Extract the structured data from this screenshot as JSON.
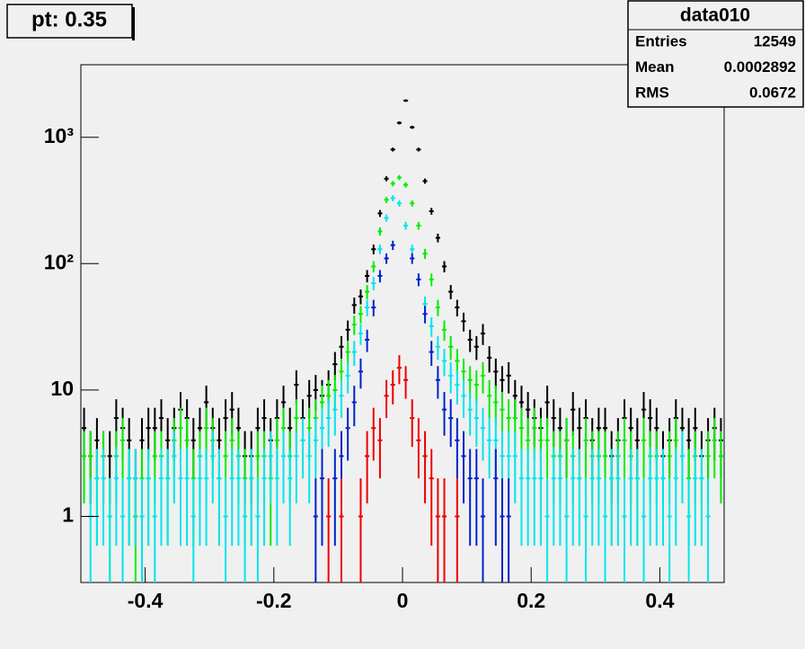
{
  "chart_data": {
    "type": "histogram",
    "title": "pt: 0.35",
    "stats": {
      "title": "data010",
      "rows": [
        {
          "label": "Entries",
          "value": 12549
        },
        {
          "label": "Mean",
          "value": 0.0002892
        },
        {
          "label": "RMS",
          "value": 0.0672
        }
      ]
    },
    "log_y": true,
    "xlim": [
      -0.5,
      0.5
    ],
    "xticks": [
      -0.4,
      -0.2,
      0,
      0.2,
      0.4
    ],
    "ylim": [
      0.3,
      3750
    ],
    "yticks": [
      1,
      10,
      {
        "value": 100,
        "label": "10²"
      },
      {
        "value": 1000,
        "label": "10³"
      }
    ],
    "bins": [
      -0.5,
      -0.49,
      -0.48,
      -0.47,
      -0.46,
      -0.45,
      -0.44,
      -0.43,
      -0.42,
      -0.41,
      -0.4,
      -0.39,
      -0.38,
      -0.37,
      -0.36,
      -0.35,
      -0.34,
      -0.33,
      -0.32,
      -0.31,
      -0.3,
      -0.29,
      -0.28,
      -0.27,
      -0.26,
      -0.25,
      -0.24,
      -0.23,
      -0.22,
      -0.21,
      -0.2,
      -0.19,
      -0.18,
      -0.17,
      -0.16,
      -0.15,
      -0.14,
      -0.13,
      -0.12,
      -0.11,
      -0.1,
      -0.09,
      -0.08,
      -0.07,
      -0.06,
      -0.05,
      -0.04,
      -0.03,
      -0.02,
      -0.01,
      0,
      0.01,
      0.02,
      0.03,
      0.04,
      0.05,
      0.06,
      0.07,
      0.08,
      0.09,
      0.1,
      0.11,
      0.12,
      0.13,
      0.14,
      0.15,
      0.16,
      0.17,
      0.18,
      0.19,
      0.2,
      0.21,
      0.22,
      0.23,
      0.24,
      0.25,
      0.26,
      0.27,
      0.28,
      0.29,
      0.3,
      0.31,
      0.32,
      0.33,
      0.34,
      0.35,
      0.36,
      0.37,
      0.38,
      0.39,
      0.4,
      0.41,
      0.42,
      0.43,
      0.44,
      0.45,
      0.46,
      0.47,
      0.48,
      0.49,
      0.5
    ],
    "series": [
      {
        "color": "#000000",
        "values": [
          5,
          3,
          4,
          3,
          3,
          6,
          5,
          4,
          2,
          4,
          5,
          5,
          6,
          4,
          5,
          7,
          6,
          4,
          5,
          8,
          5,
          4,
          6,
          7,
          5,
          3,
          3,
          5,
          6,
          4,
          6,
          8,
          5,
          11,
          6,
          9,
          10,
          9,
          11,
          16,
          22,
          30,
          47,
          55,
          80,
          130,
          250,
          470,
          800,
          1300,
          1950,
          1200,
          800,
          450,
          260,
          160,
          95,
          60,
          45,
          35,
          25,
          22,
          28,
          18,
          14,
          12,
          13,
          9,
          8,
          7,
          6,
          5,
          8,
          6,
          5,
          4,
          7,
          5,
          6,
          4,
          5,
          5,
          3,
          4,
          6,
          5,
          4,
          7,
          6,
          5,
          3,
          4,
          6,
          5,
          4,
          5,
          3,
          4,
          5,
          4
        ]
      },
      {
        "color": "#00ee00",
        "values": [
          3,
          3,
          2,
          3,
          1,
          3,
          4,
          2,
          1,
          2,
          2,
          3,
          3,
          2,
          4,
          5,
          4,
          2,
          3,
          5,
          4,
          2,
          3,
          4,
          3,
          2,
          2,
          3,
          3,
          2,
          4,
          5,
          3,
          6,
          4,
          5,
          6,
          8,
          9,
          10,
          14,
          20,
          33,
          40,
          60,
          95,
          180,
          320,
          430,
          480,
          420,
          300,
          200,
          120,
          75,
          45,
          30,
          22,
          17,
          14,
          12,
          11,
          13,
          9,
          8,
          7,
          6,
          6,
          5,
          4,
          5,
          4,
          4,
          3,
          3,
          4,
          3,
          2,
          4,
          3,
          3,
          3,
          2,
          3,
          4,
          3,
          2,
          4,
          3,
          3,
          2,
          3,
          4,
          3,
          2,
          3,
          2,
          3,
          4,
          3
        ]
      },
      {
        "color": "#00e5ee",
        "values": [
          null,
          1,
          2,
          2,
          1,
          2,
          1,
          2,
          2,
          1,
          2,
          1,
          2,
          2,
          3,
          2,
          2,
          1,
          2,
          2,
          3,
          2,
          1,
          2,
          2,
          1,
          2,
          1,
          2,
          3,
          2,
          3,
          2,
          3,
          4,
          3,
          4,
          5,
          6,
          7,
          9,
          13,
          20,
          28,
          45,
          70,
          130,
          230,
          330,
          300,
          200,
          130,
          75,
          48,
          32,
          22,
          17,
          13,
          11,
          9,
          7,
          6,
          5,
          4,
          4,
          3,
          3,
          3,
          2,
          2,
          2,
          2,
          1,
          2,
          2,
          1,
          2,
          2,
          1,
          2,
          2,
          1,
          2,
          2,
          1,
          2,
          2,
          1,
          2,
          2,
          2,
          1,
          2,
          3,
          1,
          2,
          2,
          1,
          null,
          null
        ]
      },
      {
        "color": "#0022cc",
        "values": [
          null,
          null,
          null,
          null,
          null,
          null,
          null,
          null,
          null,
          null,
          null,
          null,
          null,
          null,
          null,
          null,
          null,
          null,
          null,
          null,
          null,
          null,
          null,
          null,
          null,
          null,
          null,
          null,
          null,
          null,
          null,
          null,
          null,
          null,
          null,
          null,
          1,
          2,
          null,
          2,
          3,
          5,
          8,
          14,
          25,
          45,
          80,
          110,
          140,
          null,
          null,
          110,
          75,
          40,
          20,
          12,
          7,
          6,
          4,
          3,
          2,
          2,
          1,
          null,
          2,
          1,
          1,
          null,
          null,
          null,
          null,
          null,
          null,
          null,
          null,
          null,
          null,
          null,
          null,
          null,
          null,
          null,
          null,
          null,
          null,
          null,
          null,
          null,
          null,
          null,
          null,
          null,
          null,
          null,
          null,
          null,
          null,
          null,
          null,
          null
        ]
      },
      {
        "color": "#ee0000",
        "values": [
          null,
          null,
          null,
          null,
          null,
          null,
          null,
          null,
          null,
          null,
          null,
          null,
          null,
          null,
          null,
          null,
          null,
          null,
          null,
          null,
          null,
          null,
          null,
          null,
          null,
          null,
          null,
          null,
          null,
          null,
          null,
          null,
          null,
          null,
          null,
          null,
          null,
          null,
          1,
          null,
          1,
          null,
          null,
          1,
          3,
          5,
          4,
          9,
          11,
          15,
          12,
          6,
          4,
          3,
          2,
          1,
          1,
          null,
          1,
          null,
          null,
          null,
          null,
          null,
          null,
          null,
          null,
          null,
          null,
          null,
          null,
          null,
          null,
          null,
          null,
          null,
          null,
          null,
          null,
          null,
          null,
          null,
          null,
          null,
          null,
          null,
          null,
          null,
          null,
          null,
          null,
          null,
          null,
          null,
          null,
          null,
          null,
          null,
          null,
          null
        ]
      }
    ]
  }
}
